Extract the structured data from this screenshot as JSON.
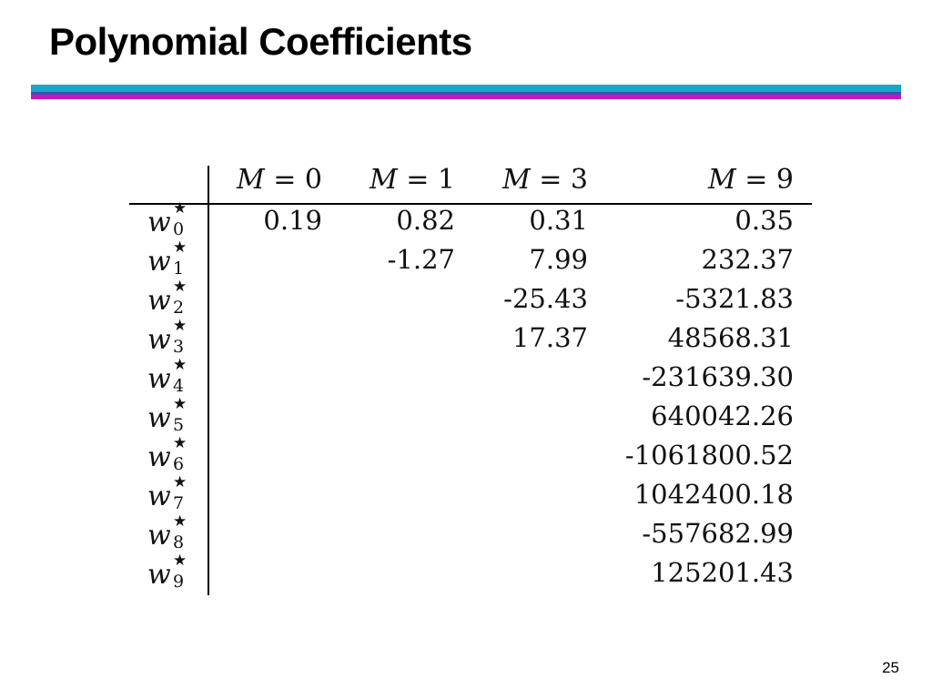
{
  "slide": {
    "title": "Polynomial Coefficients",
    "page_number": "25"
  },
  "table": {
    "columns": [
      {
        "var": "M",
        "eq": " = ",
        "value": "0"
      },
      {
        "var": "M",
        "eq": " = ",
        "value": "1"
      },
      {
        "var": "M",
        "eq": " = ",
        "value": "3"
      },
      {
        "var": "M",
        "eq": " = ",
        "value": "9"
      }
    ],
    "rows": [
      {
        "symbol": "w",
        "star": "★",
        "sub": "0",
        "cells": [
          "0.19",
          "0.82",
          "0.31",
          "0.35"
        ]
      },
      {
        "symbol": "w",
        "star": "★",
        "sub": "1",
        "cells": [
          "",
          "-1.27",
          "7.99",
          "232.37"
        ]
      },
      {
        "symbol": "w",
        "star": "★",
        "sub": "2",
        "cells": [
          "",
          "",
          "-25.43",
          "-5321.83"
        ]
      },
      {
        "symbol": "w",
        "star": "★",
        "sub": "3",
        "cells": [
          "",
          "",
          "17.37",
          "48568.31"
        ]
      },
      {
        "symbol": "w",
        "star": "★",
        "sub": "4",
        "cells": [
          "",
          "",
          "",
          "-231639.30"
        ]
      },
      {
        "symbol": "w",
        "star": "★",
        "sub": "5",
        "cells": [
          "",
          "",
          "",
          "640042.26"
        ]
      },
      {
        "symbol": "w",
        "star": "★",
        "sub": "6",
        "cells": [
          "",
          "",
          "",
          "-1061800.52"
        ]
      },
      {
        "symbol": "w",
        "star": "★",
        "sub": "7",
        "cells": [
          "",
          "",
          "",
          "1042400.18"
        ]
      },
      {
        "symbol": "w",
        "star": "★",
        "sub": "8",
        "cells": [
          "",
          "",
          "",
          "-557682.99"
        ]
      },
      {
        "symbol": "w",
        "star": "★",
        "sub": "9",
        "cells": [
          "",
          "",
          "",
          "125201.43"
        ]
      }
    ]
  },
  "colors": {
    "rule_cyan": "#1aa6c8",
    "rule_blue": "#3a52b4",
    "rule_magenta": "#c814c0"
  }
}
